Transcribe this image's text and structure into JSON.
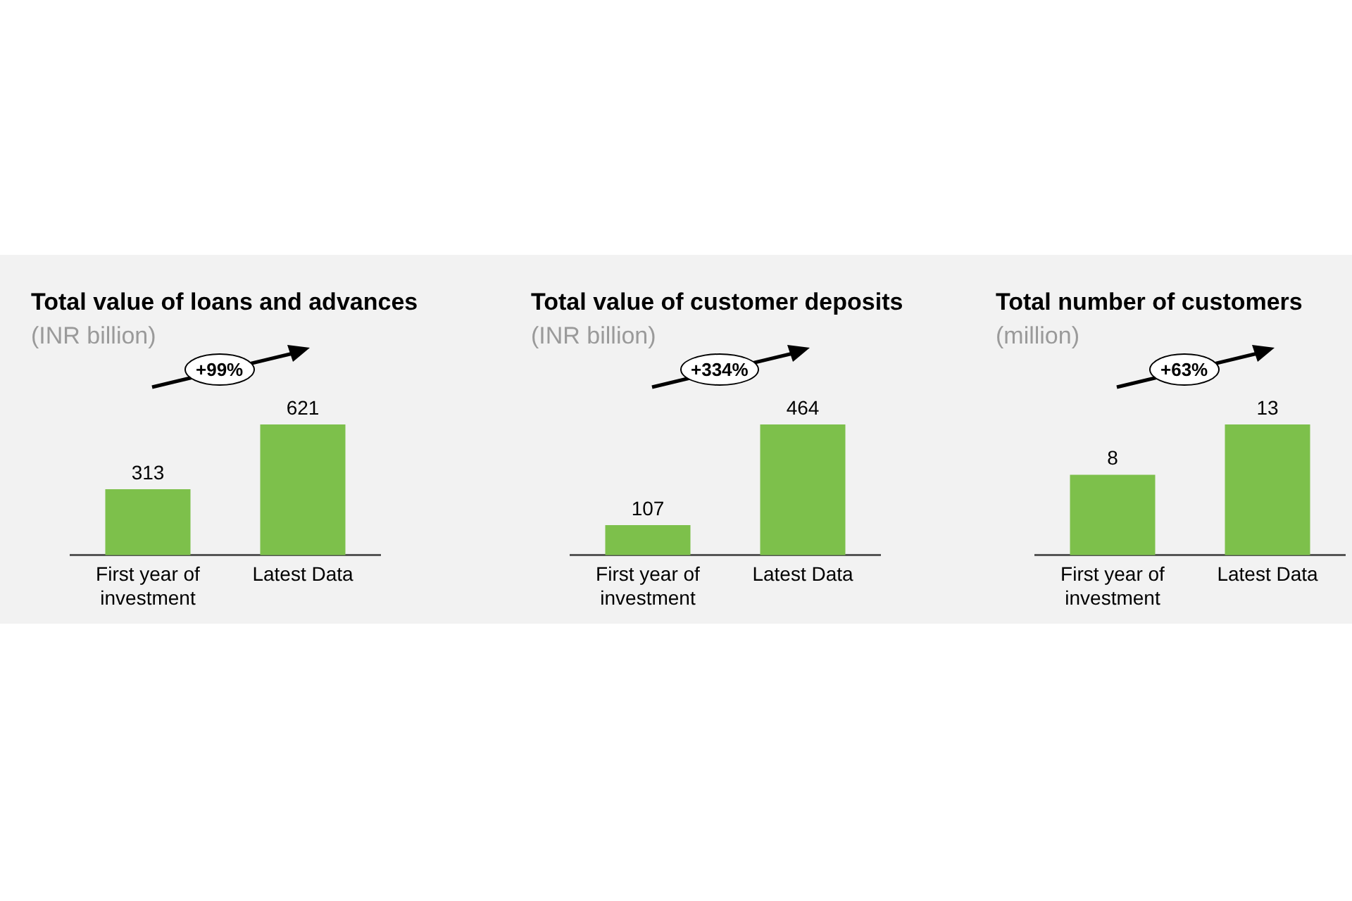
{
  "chart_data": [
    {
      "type": "bar",
      "title": "Total value of loans and advances",
      "subtitle": "(INR billion)",
      "categories": [
        "First year of investment",
        "Latest Data"
      ],
      "values": [
        313,
        621
      ],
      "color": "#7dc04b",
      "data_labels": true,
      "annotations": [
        "+99%"
      ]
    },
    {
      "type": "bar",
      "title": "Total value of customer deposits",
      "subtitle": "(INR billion)",
      "categories": [
        "First year of investment",
        "Latest Data"
      ],
      "values": [
        107,
        464
      ],
      "color": "#7dc04b",
      "data_labels": true,
      "annotations": [
        "+334%"
      ]
    },
    {
      "type": "bar",
      "title": "Total number of customers",
      "subtitle": "(million)",
      "categories": [
        "First year of investment",
        "Latest Data"
      ],
      "values": [
        8,
        13
      ],
      "color": "#7dc04b",
      "data_labels": true,
      "annotations": [
        "+63%"
      ]
    }
  ]
}
